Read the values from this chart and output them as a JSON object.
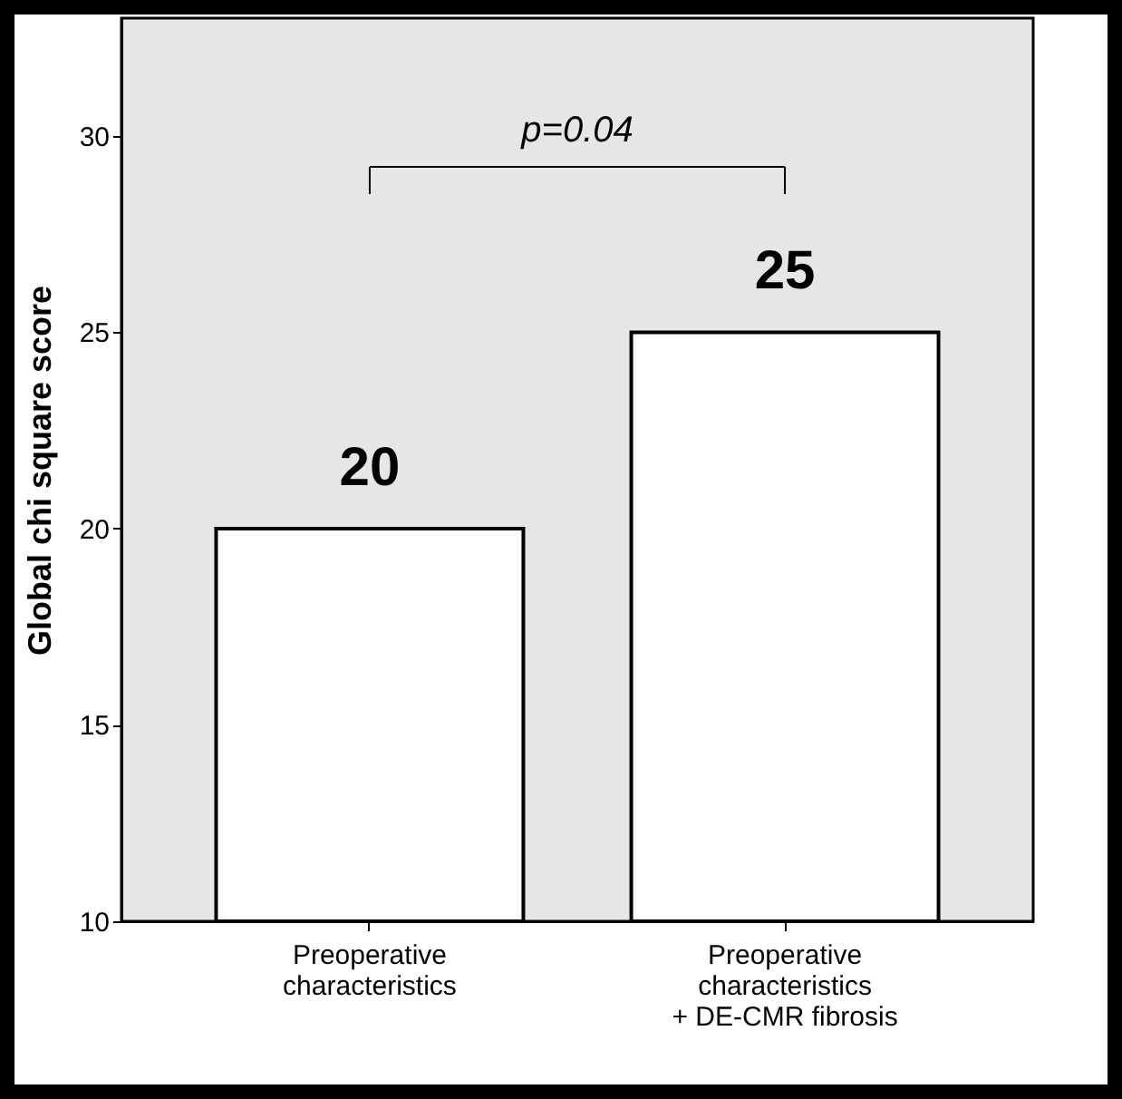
{
  "chart_data": {
    "type": "bar",
    "ylabel": "Global chi square score",
    "categories": [
      "Preoperative characteristics",
      "Preoperative characteristics + DE-CMR fibrosis"
    ],
    "values": [
      20,
      25
    ],
    "color": "#ffffff",
    "data_labels": true,
    "ylim": [
      10,
      33
    ],
    "yticks": [
      10,
      15,
      20,
      25,
      30
    ],
    "grid": false,
    "annotations": [
      "p=0.04"
    ]
  }
}
